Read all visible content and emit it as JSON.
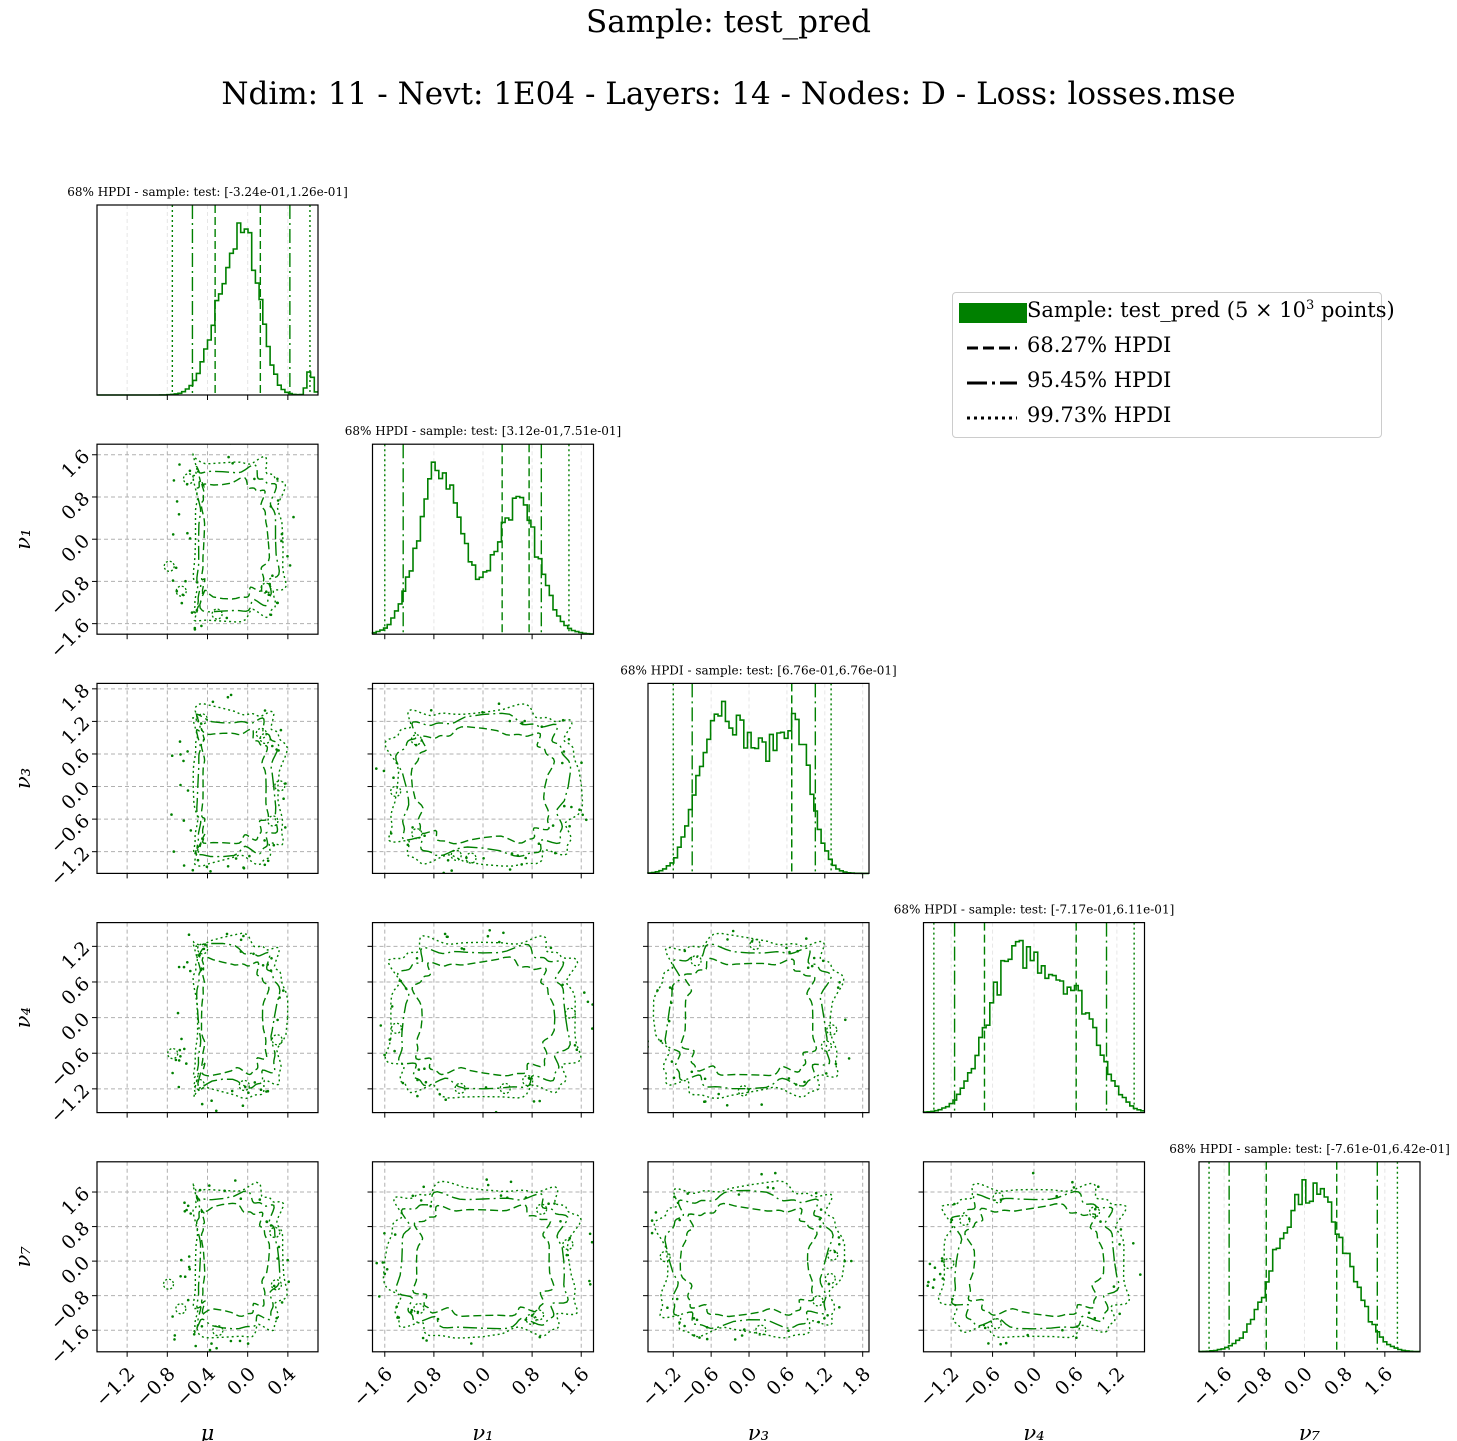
{
  "figure": {
    "title": "Sample:  test_pred",
    "subtitle": "Ndim:  11 - Nevt:  1E04 - Layers:  14 - Nodes:  D - Loss:  losses.mse"
  },
  "legend": {
    "entries": [
      {
        "label_pre": "Sample:  test_pred (5 × 10",
        "label_sup": "3",
        "label_post": " points)",
        "style": "patch",
        "color": "#008000"
      },
      {
        "label_pre": "68.27% HPDI",
        "label_sup": "",
        "label_post": "",
        "style": "dashed",
        "color": "#000000"
      },
      {
        "label_pre": "95.45% HPDI",
        "label_sup": "",
        "label_post": "",
        "style": "dashdot",
        "color": "#000000"
      },
      {
        "label_pre": "99.73% HPDI",
        "label_sup": "",
        "label_post": "",
        "style": "dotted",
        "color": "#000000"
      }
    ]
  },
  "colors": {
    "series": "#008000",
    "grid": "#b0b0b0",
    "median": "#d8d8d8"
  },
  "chart_data": {
    "type": "corner",
    "parameters": [
      {
        "name": "μ",
        "xlabel": "μ",
        "ylabel": "",
        "range": [
          -1.5,
          0.7
        ],
        "ticks": [
          -1.2,
          -0.8,
          -0.4,
          0.0,
          0.4
        ],
        "hpdi_title": "68% HPDI - sample: test:  [-3.24e-01,1.26e-01]",
        "hpdi68": [
          -0.324,
          0.126
        ],
        "hpdi95": [
          -0.55,
          0.42
        ],
        "hpdi99": [
          -0.75,
          0.62
        ],
        "modes": [
          [
            -0.15,
            0.18,
            1.0
          ],
          [
            0.05,
            0.12,
            0.55
          ],
          [
            0.62,
            0.03,
            0.2
          ]
        ],
        "ring": {
          "type": "D",
          "cx": -0.25,
          "cy": 0.0,
          "rx": 0.6,
          "ry": 1.5
        }
      },
      {
        "name": "ν1",
        "xlabel": "ν₁",
        "ylabel": "ν₁",
        "range": [
          -1.8,
          1.8
        ],
        "ticks": [
          -1.6,
          -0.8,
          0.0,
          0.8,
          1.6
        ],
        "hpdi_title": "68% HPDI - sample: test:  [3.12e-01,7.51e-01]",
        "hpdi68": [
          0.312,
          0.751
        ],
        "hpdi95": [
          -1.3,
          0.95
        ],
        "hpdi99": [
          -1.6,
          1.4
        ],
        "modes": [
          [
            -0.7,
            0.35,
            1.0
          ],
          [
            0.55,
            0.35,
            0.78
          ]
        ],
        "ring": {
          "type": "square",
          "cx": 0.0,
          "cy": 0.0,
          "rx": 1.5,
          "ry": 1.5
        }
      },
      {
        "name": "ν3",
        "xlabel": "ν₃",
        "ylabel": "ν₃",
        "range": [
          -1.6,
          1.9
        ],
        "ticks": [
          -1.2,
          -0.6,
          0.0,
          0.6,
          1.2,
          1.8
        ],
        "hpdi_title": "68% HPDI - sample: test:  [6.76e-01,6.76e-01]",
        "hpdi68": [
          0.676,
          0.676
        ],
        "hpdi95": [
          -0.9,
          1.05
        ],
        "hpdi99": [
          -1.2,
          1.3
        ],
        "modes": [
          [
            -0.55,
            0.3,
            1.0
          ],
          [
            0.1,
            0.4,
            0.85
          ],
          [
            0.75,
            0.25,
            0.9
          ]
        ],
        "ring": {
          "type": "square",
          "cx": 0.0,
          "cy": 0.0,
          "rx": 1.4,
          "ry": 1.4
        }
      },
      {
        "name": "ν4",
        "xlabel": "ν₄",
        "ylabel": "ν₄",
        "range": [
          -1.6,
          1.6
        ],
        "ticks": [
          -1.2,
          -0.6,
          0.0,
          0.6,
          1.2
        ],
        "hpdi_title": "68% HPDI - sample: test:  [-7.17e-01,6.11e-01]",
        "hpdi68": [
          -0.717,
          0.611
        ],
        "hpdi95": [
          -1.15,
          1.05
        ],
        "hpdi99": [
          -1.45,
          1.45
        ],
        "modes": [
          [
            -0.4,
            0.35,
            1.0
          ],
          [
            0.2,
            0.35,
            0.85
          ],
          [
            0.75,
            0.3,
            0.6
          ]
        ],
        "ring": {
          "type": "square",
          "cx": 0.0,
          "cy": 0.0,
          "rx": 1.3,
          "ry": 1.3
        }
      },
      {
        "name": "ν7",
        "xlabel": "ν₇",
        "ylabel": "ν₇",
        "range": [
          -2.1,
          2.3
        ],
        "ticks": [
          -1.6,
          -0.8,
          0.0,
          0.8,
          1.6
        ],
        "hpdi_title": "68% HPDI - sample: test:  [-7.61e-01,6.42e-01]",
        "hpdi68": [
          -0.761,
          0.642
        ],
        "hpdi95": [
          -1.5,
          1.45
        ],
        "hpdi99": [
          -1.9,
          1.85
        ],
        "modes": [
          [
            -0.1,
            0.55,
            1.0
          ],
          [
            0.7,
            0.45,
            0.5
          ]
        ],
        "ring": {
          "type": "square",
          "cx": 0.0,
          "cy": 0.0,
          "rx": 1.7,
          "ry": 1.7
        }
      }
    ]
  }
}
